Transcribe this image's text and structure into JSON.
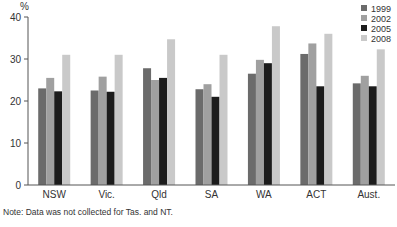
{
  "chart_data": {
    "type": "bar",
    "y_label": "%",
    "note": "Note: Data was not collected for Tas. and NT.",
    "categories": [
      "NSW",
      "Vic.",
      "Qld",
      "SA",
      "WA",
      "ACT",
      "Aust."
    ],
    "series": [
      {
        "name": "1999",
        "color": "#6b6b6b",
        "values": [
          23,
          22.5,
          27.8,
          22.8,
          26.5,
          31.2,
          24.2
        ]
      },
      {
        "name": "2002",
        "color": "#a0a0a0",
        "values": [
          25.5,
          25.8,
          25,
          24,
          29.8,
          33.7,
          26
        ]
      },
      {
        "name": "2005",
        "color": "#1c1c1c",
        "values": [
          22.3,
          22.2,
          25.5,
          21,
          29,
          23.5,
          23.5
        ]
      },
      {
        "name": "2008",
        "color": "#c9c9c9",
        "values": [
          31,
          31,
          34.7,
          31,
          37.8,
          36,
          32.3
        ]
      }
    ],
    "ylim": [
      0,
      40
    ],
    "yticks": [
      0,
      10,
      20,
      30,
      40
    ],
    "grid": false,
    "legend": "top-right"
  }
}
